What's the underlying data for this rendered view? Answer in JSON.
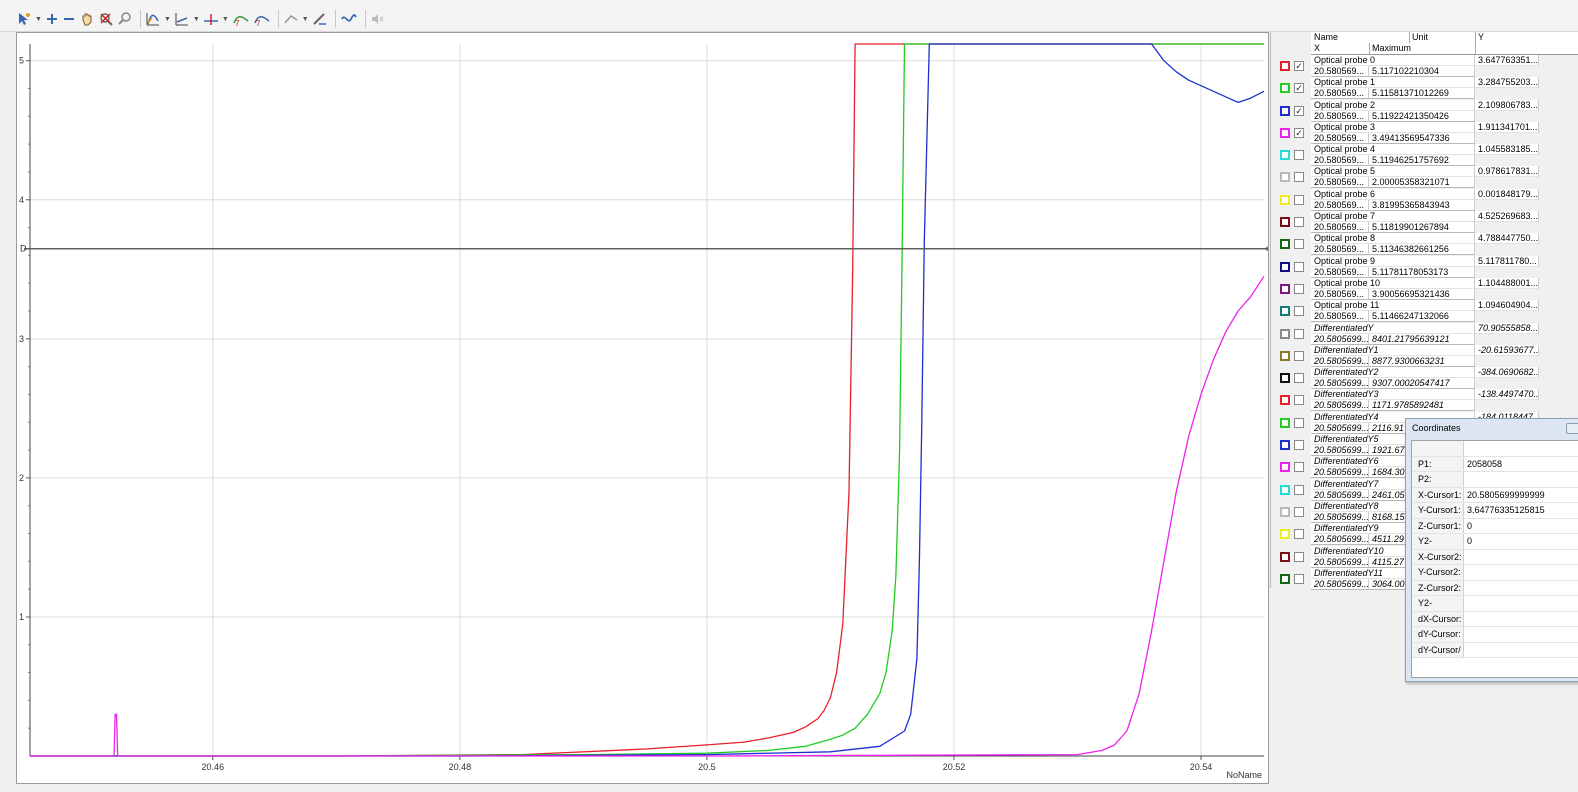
{
  "toolbar": {
    "icons": [
      "select-tool",
      "zoom-in",
      "zoom-out",
      "pan",
      "auto-scale",
      "zoom-fit",
      "curve-options",
      "axis-options",
      "marker-options",
      "cursor-a",
      "cursor-b",
      "trend",
      "settings",
      "curve-fit",
      "mute"
    ]
  },
  "legend": {
    "header": {
      "name": "Name",
      "unit": "Unit",
      "y": "Y",
      "x": "X",
      "maximum": "Maximum"
    },
    "rows": [
      {
        "name": "Optical probe 0",
        "x": "20.580569...",
        "max": "5.117102210304",
        "y": "3.647763351...",
        "color": "#e8202a",
        "checked": true,
        "italic": false
      },
      {
        "name": "Optical probe 1",
        "x": "20.580569...",
        "max": "5.11581371012269",
        "y": "3.284755203...",
        "color": "#22cc22",
        "checked": true,
        "italic": false
      },
      {
        "name": "Optical probe 2",
        "x": "20.580569...",
        "max": "5.11922421350426",
        "y": "2.109806783...",
        "color": "#1e2fd0",
        "checked": true,
        "italic": false
      },
      {
        "name": "Optical probe 3",
        "x": "20.580569...",
        "max": "3.49413569547336",
        "y": "1.911341701...",
        "color": "#ee22ee",
        "checked": true,
        "italic": false
      },
      {
        "name": "Optical probe 4",
        "x": "20.580569...",
        "max": "5.11946251757692",
        "y": "1.045583185...",
        "color": "#22dddd",
        "checked": false,
        "italic": false
      },
      {
        "name": "Optical probe 5",
        "x": "20.580569...",
        "max": "2.00005358321071",
        "y": "0.978617831...",
        "color": "#b8b8b8",
        "checked": false,
        "italic": false
      },
      {
        "name": "Optical probe 6",
        "x": "20.580569...",
        "max": "3.81995365843943",
        "y": "0.001848179...",
        "color": "#eeee22",
        "checked": false,
        "italic": false
      },
      {
        "name": "Optical probe 7",
        "x": "20.580569...",
        "max": "5.11819901267894",
        "y": "4.525269683...",
        "color": "#7a1010",
        "checked": false,
        "italic": false
      },
      {
        "name": "Optical probe 8",
        "x": "20.580569...",
        "max": "5.11346382661256",
        "y": "4.788447750...",
        "color": "#166616",
        "checked": false,
        "italic": false
      },
      {
        "name": "Optical probe 9",
        "x": "20.580569...",
        "max": "5.11781178053173",
        "y": "5.117811780...",
        "color": "#101080",
        "checked": false,
        "italic": false
      },
      {
        "name": "Optical probe 10",
        "x": "20.580569...",
        "max": "3.90056695321436",
        "y": "1.104488001...",
        "color": "#7a1a7a",
        "checked": false,
        "italic": false
      },
      {
        "name": "Optical probe 11",
        "x": "20.580569...",
        "max": "5.11466247132066",
        "y": "1.094604904...",
        "color": "#167a7a",
        "checked": false,
        "italic": false
      },
      {
        "name": "DifferentiatedY",
        "x": "20.5805699...",
        "max": "8401.21795639121",
        "y": "70.90555858...",
        "color": "#8a8a8a",
        "checked": false,
        "italic": true
      },
      {
        "name": "DifferentiatedY1",
        "x": "20.5805699...",
        "max": "8877.9300663231",
        "y": "-20.61593677...",
        "color": "#8a7a2a",
        "checked": false,
        "italic": true
      },
      {
        "name": "DifferentiatedY2",
        "x": "20.5805699...",
        "max": "9307.00020547417",
        "y": "-384.0690682...",
        "color": "#111111",
        "checked": false,
        "italic": true
      },
      {
        "name": "DifferentiatedY3",
        "x": "20.5805699...",
        "max": "1171.9785892481",
        "y": "-138.4497470...",
        "color": "#e8202a",
        "checked": false,
        "italic": true
      },
      {
        "name": "DifferentiatedY4",
        "x": "20.5805699...",
        "max": "2116.91",
        "y": "-184.0118447...",
        "color": "#22cc22",
        "checked": false,
        "italic": true
      },
      {
        "name": "DifferentiatedY5",
        "x": "20.5805699...",
        "max": "1921.67",
        "y": "",
        "color": "#1e2fd0",
        "checked": false,
        "italic": true
      },
      {
        "name": "DifferentiatedY6",
        "x": "20.5805699...",
        "max": "1684.30",
        "y": "",
        "color": "#ee22ee",
        "checked": false,
        "italic": true
      },
      {
        "name": "DifferentiatedY7",
        "x": "20.5805699...",
        "max": "2461.05",
        "y": "",
        "color": "#22dddd",
        "checked": false,
        "italic": true
      },
      {
        "name": "DifferentiatedY8",
        "x": "20.5805699...",
        "max": "8168.15",
        "y": "",
        "color": "#b8b8b8",
        "checked": false,
        "italic": true
      },
      {
        "name": "DifferentiatedY9",
        "x": "20.5805699...",
        "max": "4511.29",
        "y": "",
        "color": "#eeee22",
        "checked": false,
        "italic": true
      },
      {
        "name": "DifferentiatedY10",
        "x": "20.5805699...",
        "max": "4115.27",
        "y": "",
        "color": "#7a1010",
        "checked": false,
        "italic": true
      },
      {
        "name": "DifferentiatedY11",
        "x": "20.5805699...",
        "max": "3064.00",
        "y": "",
        "color": "#166616",
        "checked": false,
        "italic": true
      }
    ]
  },
  "coordinates": {
    "title": "Coordinates",
    "rows": [
      {
        "label": "",
        "value": ""
      },
      {
        "label": "P1:",
        "value": "2058058"
      },
      {
        "label": "P2:",
        "value": ""
      },
      {
        "label": "X-Cursor1:",
        "value": "20.5805699999999"
      },
      {
        "label": "Y-Cursor1:",
        "value": "3.64776335125815"
      },
      {
        "label": "Z-Cursor1:",
        "value": "0"
      },
      {
        "label": "Y2-Cursor1",
        "value": "0"
      },
      {
        "label": "X-Cursor2:",
        "value": ""
      },
      {
        "label": "Y-Cursor2:",
        "value": ""
      },
      {
        "label": "Z-Cursor2:",
        "value": ""
      },
      {
        "label": "Y2-Cursor2",
        "value": ""
      },
      {
        "label": "dX-Cursor:",
        "value": ""
      },
      {
        "label": "dY-Cursor:",
        "value": ""
      },
      {
        "label": "dY-Cursor/",
        "value": ""
      }
    ]
  },
  "chart_data": {
    "type": "line",
    "x_axis_label": "NoName",
    "xlim": [
      20.4452,
      20.5451
    ],
    "ylim": [
      0,
      5.12
    ],
    "x_ticks": [
      20.46,
      20.48,
      20.5,
      20.52,
      20.54
    ],
    "x_tick_labels": [
      "20.46",
      "20.48",
      "20.5",
      "20.52",
      "20.54"
    ],
    "y_ticks": [
      1,
      2,
      3,
      4,
      5
    ],
    "y_tick_labels": [
      "1",
      "2",
      "3",
      "4",
      "5"
    ],
    "grid": true,
    "cursor": {
      "y": 3.6477,
      "label": "D"
    },
    "series": [
      {
        "name": "Optical probe 0",
        "color": "#e8202a",
        "x": [
          20.4452,
          20.47,
          20.485,
          20.495,
          20.5,
          20.503,
          20.505,
          20.507,
          20.508,
          20.509,
          20.5095,
          20.51,
          20.5105,
          20.511,
          20.5115,
          20.5118,
          20.512,
          20.5451
        ],
        "y": [
          0,
          0,
          0.01,
          0.05,
          0.08,
          0.1,
          0.13,
          0.17,
          0.21,
          0.27,
          0.33,
          0.42,
          0.6,
          0.95,
          1.9,
          3.5,
          5.12,
          5.12
        ]
      },
      {
        "name": "Optical probe 1",
        "color": "#22cc22",
        "x": [
          20.4452,
          20.47,
          20.49,
          20.5,
          20.505,
          20.508,
          20.51,
          20.511,
          20.512,
          20.513,
          20.514,
          20.5145,
          20.515,
          20.5153,
          20.5156,
          20.5158,
          20.516,
          20.5451
        ],
        "y": [
          0,
          0,
          0.01,
          0.02,
          0.04,
          0.07,
          0.12,
          0.15,
          0.2,
          0.3,
          0.45,
          0.6,
          0.9,
          1.3,
          2.2,
          3.6,
          5.12,
          5.12
        ]
      },
      {
        "name": "Optical probe 2",
        "color": "#1e2fd0",
        "x": [
          20.4452,
          20.48,
          20.5,
          20.51,
          20.514,
          20.516,
          20.5165,
          20.517,
          20.5172,
          20.5174,
          20.5176,
          20.518,
          20.536,
          20.537,
          20.538,
          20.539,
          20.54,
          20.541,
          20.542,
          20.543,
          20.544,
          20.5451
        ],
        "y": [
          0,
          0,
          0.01,
          0.03,
          0.07,
          0.18,
          0.3,
          0.7,
          1.4,
          2.4,
          3.7,
          5.12,
          5.12,
          5.0,
          4.92,
          4.86,
          4.82,
          4.78,
          4.74,
          4.7,
          4.73,
          4.78
        ]
      },
      {
        "name": "Optical probe 3",
        "color": "#ee22ee",
        "x": [
          20.4452,
          20.452,
          20.4521,
          20.4522,
          20.4523,
          20.5,
          20.53,
          20.532,
          20.533,
          20.534,
          20.535,
          20.536,
          20.537,
          20.538,
          20.539,
          20.54,
          20.541,
          20.542,
          20.543,
          20.544,
          20.5451
        ],
        "y": [
          0,
          0,
          0.3,
          0.3,
          0,
          0,
          0.01,
          0.04,
          0.08,
          0.18,
          0.45,
          0.9,
          1.4,
          1.9,
          2.3,
          2.6,
          2.85,
          3.05,
          3.2,
          3.3,
          3.45
        ]
      }
    ]
  }
}
